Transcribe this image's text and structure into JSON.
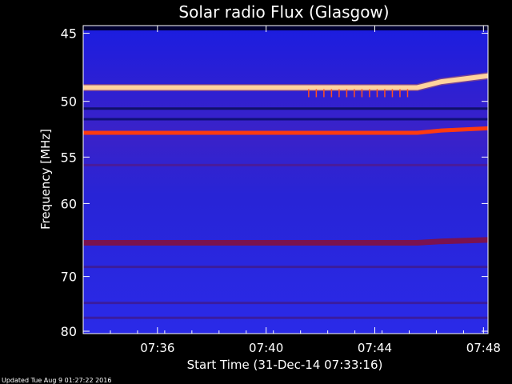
{
  "chart_data": {
    "type": "heatmap",
    "title": "Solar radio Flux (Glasgow)",
    "xlabel": "Start Time (31-Dec-14 07:33:16)",
    "ylabel": "Frequency [MHz]",
    "x_ticks": [
      "07:36",
      "07:40",
      "07:44",
      "07:48"
    ],
    "x_tick_minutes": [
      2.733,
      6.733,
      10.733,
      14.733
    ],
    "x_range_minutes": [
      0,
      14.9
    ],
    "y_ticks": [
      45,
      50,
      55,
      60,
      70,
      80
    ],
    "y_scale": "reciprocal",
    "y_range_mhz": [
      44.5,
      80.5
    ],
    "bands": [
      {
        "mhz": 48.9,
        "mhz_end": 48.0,
        "color": "#ffffe0",
        "kind": "bright"
      },
      {
        "mhz": 52.7,
        "mhz_end": 52.3,
        "color": "#ff3a10",
        "kind": "strong"
      },
      {
        "mhz": 50.6,
        "mhz_end": 50.6,
        "color": "#10106a",
        "kind": "dark"
      },
      {
        "mhz": 51.5,
        "mhz_end": 51.5,
        "color": "#101078",
        "kind": "dark"
      },
      {
        "mhz": 55.8,
        "mhz_end": 55.8,
        "color": "#4a1b9a",
        "kind": "weak"
      },
      {
        "mhz": 65.0,
        "mhz_end": 64.6,
        "color": "#7a1250",
        "kind": "medium"
      },
      {
        "mhz": 68.5,
        "mhz_end": 68.5,
        "color": "#3b1c9c",
        "kind": "weak"
      },
      {
        "mhz": 74.5,
        "mhz_end": 74.5,
        "color": "#3a1ca0",
        "kind": "weak"
      },
      {
        "mhz": 77.3,
        "mhz_end": 77.3,
        "color": "#3a1ca0",
        "kind": "weak"
      }
    ],
    "colormap": [
      "#000040",
      "#1a1ad8",
      "#5a1fa8",
      "#a01050",
      "#ff3010",
      "#ffffe0"
    ]
  },
  "footer": {
    "updated": "Updated Tue Aug  9 01:27:22 2016"
  }
}
